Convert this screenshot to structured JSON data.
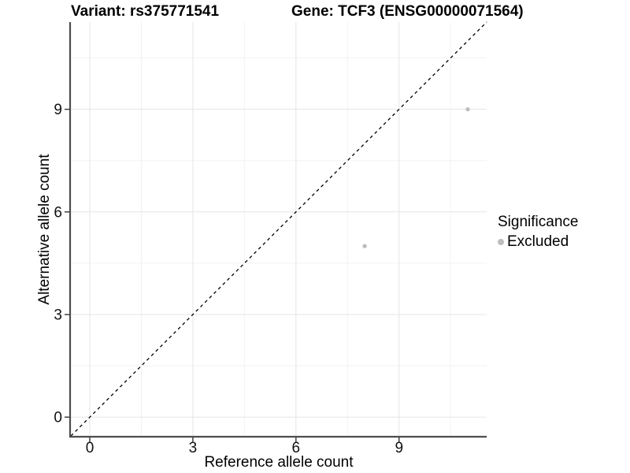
{
  "chart_data": {
    "type": "scatter",
    "title_left": "Variant: rs375771541",
    "title_right": "Gene: TCF3 (ENSG00000071564)",
    "xlabel": "Reference allele count",
    "ylabel": "Alternative allele count",
    "xlim": [
      -0.55,
      11.55
    ],
    "ylim": [
      -0.55,
      11.55
    ],
    "x_ticks": [
      0,
      3,
      6,
      9
    ],
    "y_ticks": [
      0,
      3,
      6,
      9
    ],
    "x_minor_ticks": [
      1.5,
      4.5,
      7.5,
      10.5
    ],
    "y_minor_ticks": [
      1.5,
      4.5,
      7.5,
      10.5
    ],
    "grid": true,
    "series": [
      {
        "name": "Excluded",
        "color": "#bebebe",
        "points": [
          [
            8,
            5
          ],
          [
            11,
            9
          ]
        ]
      }
    ],
    "identity_line": {
      "style": "dashed",
      "color": "#000000",
      "from": [
        -0.55,
        -0.55
      ],
      "to": [
        11.55,
        11.55
      ]
    },
    "legend": {
      "position": "right",
      "title": "Significance",
      "entries": [
        {
          "label": "Excluded",
          "color": "#bebebe"
        }
      ]
    },
    "colors": {
      "grid_major": "#e5e5e5",
      "grid_minor": "#f2f2f2",
      "axis_line": "#4d4d4d",
      "tick_mark": "#333333",
      "tick_text": "#111111",
      "background": "#ffffff"
    }
  }
}
